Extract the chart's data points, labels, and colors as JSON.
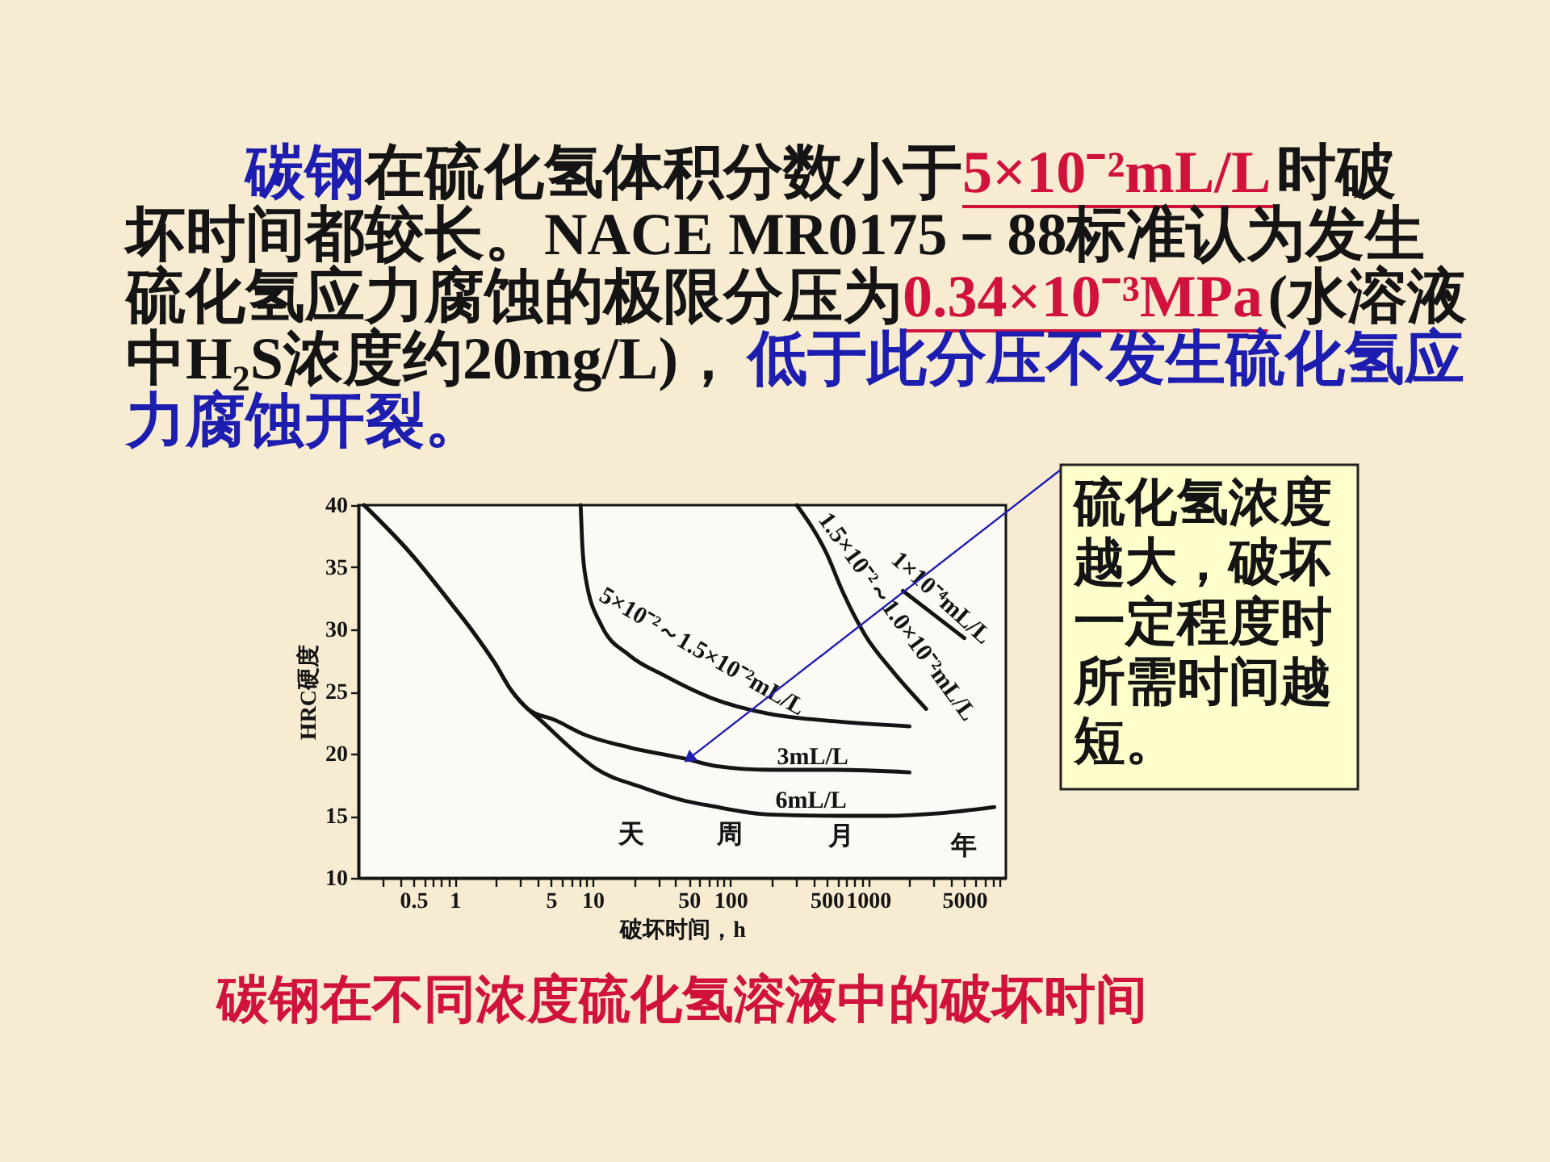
{
  "chart_data": {
    "type": "line",
    "title": "碳钢在不同浓度硫化氢溶液中的破坏时间",
    "xlabel": "破坏时间，h",
    "ylabel": "HRC硬度",
    "log": "x",
    "grid": false,
    "xlim": [
      0.2,
      10000
    ],
    "xticks": [
      {
        "value": 0.3,
        "label": null
      },
      {
        "value": 0.4,
        "label": null
      },
      0.5,
      {
        "value": 0.6,
        "label": null
      },
      {
        "value": 0.7,
        "label": null
      },
      {
        "value": 0.8,
        "label": null
      },
      {
        "value": 0.9,
        "label": null
      },
      1,
      {
        "value": 2,
        "label": null
      },
      {
        "value": 3,
        "label": null
      },
      {
        "value": 4,
        "label": null
      },
      5,
      {
        "value": 6,
        "label": null
      },
      {
        "value": 7,
        "label": null
      },
      {
        "value": 8,
        "label": null
      },
      {
        "value": 9,
        "label": null
      },
      10,
      {
        "value": 20,
        "label": null
      },
      {
        "value": 30,
        "label": null
      },
      {
        "value": 40,
        "label": null
      },
      50,
      {
        "value": 60,
        "label": null
      },
      {
        "value": 70,
        "label": null
      },
      {
        "value": 80,
        "label": null
      },
      {
        "value": 90,
        "label": null
      },
      100,
      {
        "value": 200,
        "label": null
      },
      {
        "value": 300,
        "label": null
      },
      {
        "value": 400,
        "label": null
      },
      500,
      {
        "value": 600,
        "label": null
      },
      {
        "value": 700,
        "label": null
      },
      {
        "value": 800,
        "label": null
      },
      {
        "value": 900,
        "label": null
      },
      1000,
      {
        "value": 2000,
        "label": null
      },
      {
        "value": 3000,
        "label": null
      },
      {
        "value": 4000,
        "label": null
      },
      5000,
      {
        "value": 6000,
        "label": null
      },
      {
        "value": 7000,
        "label": null
      },
      {
        "value": 8000,
        "label": null
      },
      {
        "value": 9000,
        "label": null
      }
    ],
    "ylim": [
      10,
      40
    ],
    "yticks": [
      10,
      15,
      20,
      25,
      30,
      35,
      40
    ],
    "series": [
      {
        "name": "5×10⁻²～1.5×10⁻²mL/L",
        "color": "#141414",
        "x": [
          8.2,
          8.4,
          8.9,
          11.5,
          18.6,
          33,
          72,
          192,
          582,
          2000
        ],
        "values": [
          40,
          37.1,
          34.2,
          30.4,
          27.9,
          26.3,
          24.5,
          23.2,
          22.6,
          22.2
        ]
      },
      {
        "name": "1.5×10⁻²～1.0×10⁻²mL/L",
        "color": "#141414",
        "x": [
          304,
          500,
          662,
          957,
          1517,
          2640
        ],
        "values": [
          40,
          36.1,
          32.9,
          29.5,
          26.6,
          23.6
        ]
      },
      {
        "name": "1×10⁻⁴mL/L",
        "color": "#141414",
        "x": [
          1790,
          5000
        ],
        "values": [
          33.1,
          29.3
        ]
      },
      {
        "name": "3mL/L",
        "color": "#141414",
        "x": [
          0.22,
          0.48,
          0.94,
          1.36,
          1.95,
          2.57,
          3.39,
          5.35,
          8.9,
          18.6,
          47,
          79,
          192,
          582,
          2000
        ],
        "values": [
          40,
          36.1,
          32.1,
          29.8,
          27.3,
          25.1,
          23.6,
          22.7,
          21.5,
          20.5,
          19.6,
          19.0,
          18.7,
          18.7,
          18.5
        ]
      },
      {
        "name": "6mL/L",
        "color": "#141414",
        "x": [
          0.22,
          0.48,
          0.94,
          1.36,
          1.95,
          2.57,
          3.39,
          4.1,
          6.7,
          10.6,
          22.7,
          47,
          72,
          192,
          594,
          1320,
          3300,
          8240
        ],
        "values": [
          40,
          36.1,
          32.1,
          29.8,
          27.3,
          25.1,
          23.6,
          22.8,
          20.6,
          18.8,
          17.3,
          16.2,
          15.8,
          15.1,
          15.0,
          15.0,
          15.2,
          15.7
        ]
      }
    ],
    "annotations": [
      "碳钢",
      "在硫化氢体积分数小于",
      "5×10⁻²mL/L",
      "时破",
      "坏时间都较长。NACE MR0175－88标准认为发生",
      "硫化氢应力腐蚀的极限分压为",
      "0.34×10⁻³MPa",
      "(水溶液",
      "中H₂S浓度约20mg/L)，",
      "低于此分压不发生硫化氢应",
      "力腐蚀开裂。",
      "天",
      "周",
      "月",
      "年",
      {
        "text": "硫化氢浓度越大，破坏一定程度时所需时间越短。",
        "x": 50,
        "y": 19.6
      }
    ]
  }
}
